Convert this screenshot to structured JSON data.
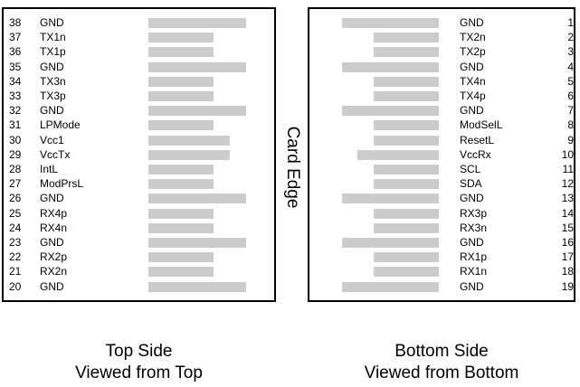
{
  "top_side": {
    "caption_line1": "Top Side",
    "caption_line2": "Viewed from Top",
    "pins": [
      {
        "num": "38",
        "name": "GND"
      },
      {
        "num": "37",
        "name": "TX1n"
      },
      {
        "num": "36",
        "name": "TX1p"
      },
      {
        "num": "35",
        "name": "GND"
      },
      {
        "num": "34",
        "name": "TX3n"
      },
      {
        "num": "33",
        "name": "TX3p"
      },
      {
        "num": "32",
        "name": "GND"
      },
      {
        "num": "31",
        "name": "LPMode"
      },
      {
        "num": "30",
        "name": "Vcc1"
      },
      {
        "num": "29",
        "name": "VccTx"
      },
      {
        "num": "28",
        "name": "IntL"
      },
      {
        "num": "27",
        "name": "ModPrsL"
      },
      {
        "num": "26",
        "name": "GND"
      },
      {
        "num": "25",
        "name": "RX4p"
      },
      {
        "num": "24",
        "name": "RX4n"
      },
      {
        "num": "23",
        "name": "GND"
      },
      {
        "num": "22",
        "name": "RX2p"
      },
      {
        "num": "21",
        "name": "RX2n"
      },
      {
        "num": "20",
        "name": "GND"
      }
    ]
  },
  "edge_label": "Card Edge",
  "bottom_side": {
    "caption_line1": "Bottom Side",
    "caption_line2": "Viewed from Bottom",
    "pins": [
      {
        "num": "1",
        "name": "GND"
      },
      {
        "num": "2",
        "name": "TX2n"
      },
      {
        "num": "3",
        "name": "TX2p"
      },
      {
        "num": "4",
        "name": "GND"
      },
      {
        "num": "5",
        "name": "TX4n"
      },
      {
        "num": "6",
        "name": "TX4p"
      },
      {
        "num": "7",
        "name": "GND"
      },
      {
        "num": "8",
        "name": "ModSelL"
      },
      {
        "num": "9",
        "name": "ResetL"
      },
      {
        "num": "10",
        "name": "VccRx"
      },
      {
        "num": "11",
        "name": "SCL"
      },
      {
        "num": "12",
        "name": "SDA"
      },
      {
        "num": "13",
        "name": "GND"
      },
      {
        "num": "14",
        "name": "RX3p"
      },
      {
        "num": "15",
        "name": "RX3n"
      },
      {
        "num": "16",
        "name": "GND"
      },
      {
        "num": "17",
        "name": "RX1p"
      },
      {
        "num": "18",
        "name": "RX1n"
      },
      {
        "num": "19",
        "name": "GND"
      }
    ]
  },
  "colors": {
    "pad": "#cccccc",
    "border": "#000000"
  }
}
